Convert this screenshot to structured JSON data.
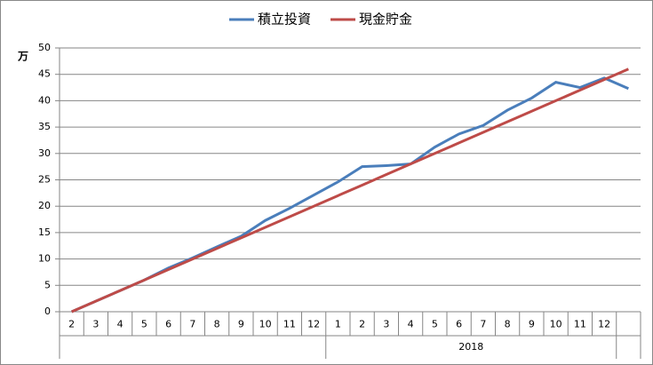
{
  "chart_data": {
    "type": "line",
    "y_unit": "万",
    "categories": [
      "2",
      "3",
      "4",
      "5",
      "6",
      "7",
      "8",
      "9",
      "10",
      "11",
      "12",
      "1",
      "2",
      "3",
      "4",
      "5",
      "6",
      "7",
      "8",
      "9",
      "10",
      "11",
      "12",
      null
    ],
    "x_group_label": "2018",
    "series": [
      {
        "name": "積立投資",
        "color": "#4a7ebb",
        "values": [
          0,
          2,
          4,
          6,
          8.3,
          10.2,
          12.3,
          14.3,
          17.3,
          19.6,
          22.1,
          24.6,
          27.5,
          27.7,
          28.0,
          31.2,
          33.7,
          35.3,
          38.2,
          40.5,
          43.5,
          42.5,
          44.3,
          42.3
        ]
      },
      {
        "name": "現金貯金",
        "color": "#be4b48",
        "values": [
          0,
          2,
          4,
          6,
          8,
          10,
          12,
          14,
          16,
          18,
          20,
          22,
          24,
          26,
          28,
          30,
          32,
          34,
          36,
          38,
          40,
          42,
          44,
          46
        ]
      }
    ],
    "ylim": [
      0,
      50
    ],
    "yticks": [
      0,
      5,
      10,
      15,
      20,
      25,
      30,
      35,
      40,
      45,
      50
    ],
    "grid": true,
    "legend": "top"
  }
}
